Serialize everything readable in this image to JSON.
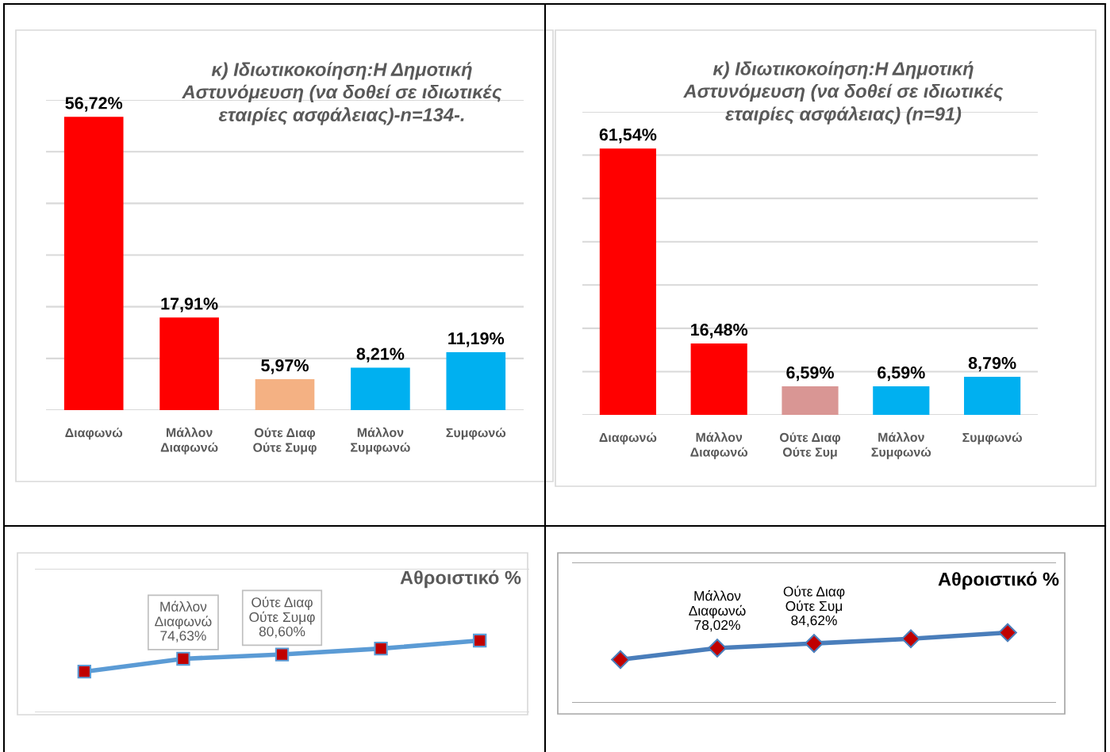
{
  "chart_data": [
    {
      "type": "bar",
      "title": "κ) Ιδιωτικοκοίηση:Η Δημοτική\nΑστυνόμευση (να δοθεί σε ιδιωτικές\nεταιρίες ασφάλειας)-n=134-.",
      "categories": [
        "Διαφωνώ",
        "Μάλλον\nΔιαφωνώ",
        "Ούτε Διαφ\nΟύτε Συμφ",
        "Μάλλον\nΣυμφωνώ",
        "Συμφωνώ"
      ],
      "values": [
        56.72,
        17.91,
        5.97,
        8.21,
        11.19
      ],
      "colors": [
        "#ff0000",
        "#ff0000",
        "#f4b183",
        "#00b0f0",
        "#00b0f0"
      ],
      "value_labels": [
        "56,72%",
        "17,91%",
        "5,97%",
        "8,21%",
        "11,19%"
      ],
      "ylim": [
        0,
        60
      ],
      "yticks": [
        {
          "value": 0,
          "label": null
        },
        {
          "value": 10,
          "label": null
        },
        {
          "value": 20,
          "label": null
        },
        {
          "value": 30,
          "label": null
        },
        {
          "value": 40,
          "label": null
        },
        {
          "value": 50,
          "label": null
        },
        {
          "value": 60,
          "label": null
        }
      ],
      "grid": "y",
      "tick_labels": "x"
    },
    {
      "type": "bar",
      "title": "κ) Ιδιωτικοκοίηση:Η Δημοτική\nΑστυνόμευση (να δοθεί σε ιδιωτικές\nεταιρίες ασφάλειας) (n=91)",
      "categories": [
        "Διαφωνώ",
        "Μάλλον\nΔιαφωνώ",
        "Ούτε Διαφ\nΟύτε Συμ",
        "Μάλλον\nΣυμφωνώ",
        "Συμφωνώ"
      ],
      "values": [
        61.54,
        16.48,
        6.59,
        6.59,
        8.79
      ],
      "colors": [
        "#ff0000",
        "#ff0000",
        "#d99694",
        "#00b0f0",
        "#00b0f0"
      ],
      "value_labels": [
        "61,54%",
        "16,48%",
        "6,59%",
        "6,59%",
        "8,79%"
      ],
      "ylim": [
        0,
        70
      ],
      "yticks": [
        {
          "value": 0,
          "label": null
        },
        {
          "value": 10,
          "label": null
        },
        {
          "value": 20,
          "label": null
        },
        {
          "value": 30,
          "label": null
        },
        {
          "value": 40,
          "label": null
        },
        {
          "value": 50,
          "label": null
        },
        {
          "value": 60,
          "label": null
        },
        {
          "value": 70,
          "label": null
        }
      ],
      "grid": "y",
      "tick_labels": "x"
    },
    {
      "type": "line",
      "title": "Αθροιστικό %",
      "categories": [
        null,
        null,
        null,
        null,
        null
      ],
      "values": [
        56.72,
        74.63,
        80.6,
        88.81,
        100
      ],
      "color": "#5b9bd5",
      "marker": "square",
      "line_style": "solid",
      "value_labels": [
        null,
        "Μάλλον\nΔιαφωνώ\n74,63%",
        "Ούτε Διαφ\nΟύτε Συμφ\n80,60%",
        null,
        null
      ],
      "ylim": [
        0,
        200
      ],
      "yticks": [
        {
          "value": 0,
          "label": null
        },
        {
          "value": 200,
          "label": null
        }
      ],
      "grid": "y",
      "tick_labels": false
    },
    {
      "type": "line",
      "title": "Αθροιστικό %",
      "categories": [
        null,
        null,
        null,
        null,
        null
      ],
      "values": [
        61.54,
        78.02,
        84.62,
        91.21,
        100
      ],
      "color": "#4a7ebb",
      "marker": "diamond",
      "line_style": "solid",
      "value_labels": [
        null,
        "Μάλλον\nΔιαφωνώ\n78,02%",
        "Ούτε Διαφ\nΟύτε Συμ\n84,62%",
        null,
        null
      ],
      "ylim": [
        0,
        200
      ],
      "yticks": [
        {
          "value": 0,
          "label": null
        },
        {
          "value": 200,
          "label": null
        }
      ],
      "grid": "y",
      "tick_labels": false
    }
  ]
}
